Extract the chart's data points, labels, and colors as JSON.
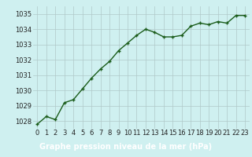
{
  "x": [
    0,
    1,
    2,
    3,
    4,
    5,
    6,
    7,
    8,
    9,
    10,
    11,
    12,
    13,
    14,
    15,
    16,
    17,
    18,
    19,
    20,
    21,
    22,
    23
  ],
  "y": [
    1027.8,
    1028.3,
    1028.1,
    1029.2,
    1029.4,
    1030.1,
    1030.8,
    1031.4,
    1031.9,
    1032.6,
    1033.1,
    1033.6,
    1034.0,
    1033.8,
    1033.5,
    1033.5,
    1033.6,
    1034.2,
    1034.4,
    1034.3,
    1034.5,
    1034.4,
    1034.9,
    1034.9
  ],
  "line_color": "#1a5c1a",
  "marker_color": "#1a5c1a",
  "bg_color": "#cff0f0",
  "grid_color": "#b0c8c8",
  "xlabel": "Graphe pression niveau de la mer (hPa)",
  "xlabel_bg": "#1a5c1a",
  "xlabel_color": "#ffffff",
  "ylim": [
    1027.5,
    1035.5
  ],
  "xlim": [
    -0.5,
    23.5
  ],
  "yticks": [
    1028,
    1029,
    1030,
    1031,
    1032,
    1033,
    1034,
    1035
  ],
  "xticks": [
    0,
    1,
    2,
    3,
    4,
    5,
    6,
    7,
    8,
    9,
    10,
    11,
    12,
    13,
    14,
    15,
    16,
    17,
    18,
    19,
    20,
    21,
    22,
    23
  ],
  "tick_fontsize": 6,
  "xlabel_fontsize": 7,
  "marker_size": 3.5,
  "line_width": 1.0
}
